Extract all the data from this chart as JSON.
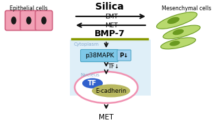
{
  "bg_color": "#ffffff",
  "title_text": "Silica",
  "emt_text": "EMT",
  "met_text_top": "MET",
  "bmp7_text": "BMP-7",
  "cytoplasm_text": "Cytoplasm",
  "nucleus_text": "Nucleus",
  "p38_text": "p38MAPK",
  "pi_text": "P↓",
  "tf_text": "TF",
  "tf_arrow_text": "TF↓",
  "ecadherin_text": "E-cadherin",
  "met_text_bottom": "MET",
  "epithelial_text": "Epithelial cells",
  "mesenchymal_text": "Mesenchymal cells",
  "cell_pink": "#f2a0b5",
  "cell_pink_dark": "#d06080",
  "cell_nucleus_color": "#1a1a1a",
  "meso_cell_color": "#b8d96e",
  "meso_cell_dark": "#6a9a20",
  "cytoplasm_rect_color": "#b8ddf0",
  "p38_box_color": "#7ec8e8",
  "p38_box_edge": "#50a8c8",
  "pi_box_color": "#a0d0f0",
  "nucleus_ellipse_color": "#f090b0",
  "tf_ellipse_color": "#3060cc",
  "ecadherin_ellipse_color": "#b8b860",
  "green_line_color": "#889900",
  "arrow_color": "#111111",
  "cytoplasm_text_color": "#88aacc",
  "nucleus_text_color": "#88aacc",
  "figsize": [
    3.21,
    1.89
  ],
  "dpi": 100
}
